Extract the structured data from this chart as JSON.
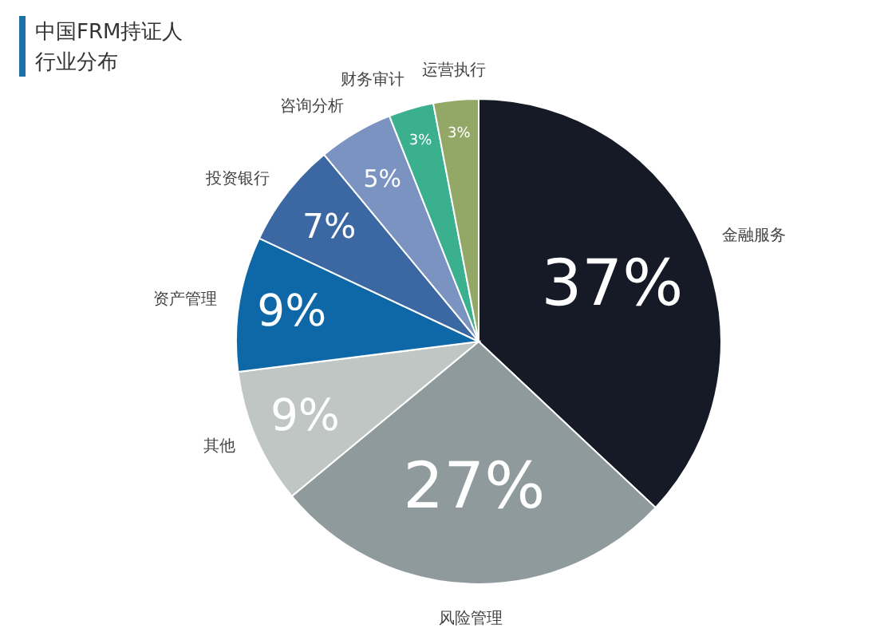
{
  "chart_data": {
    "type": "pie",
    "title": "中国FRM持证人",
    "subtitle": "行业分布",
    "categories": [
      "金融服务",
      "风险管理",
      "其他",
      "资产管理",
      "投资银行",
      "咨询分析",
      "财务审计",
      "运营执行"
    ],
    "values": [
      37,
      27,
      9,
      9,
      7,
      5,
      3,
      3
    ],
    "value_labels": [
      "37%",
      "27%",
      "9%",
      "9%",
      "7%",
      "5%",
      "3%",
      "3%"
    ],
    "colors": [
      "#161a26",
      "#8f9a9c",
      "#bfc6c4",
      "#0e67a6",
      "#3b67a3",
      "#7b93c0",
      "#3bb08e",
      "#93a866"
    ]
  }
}
